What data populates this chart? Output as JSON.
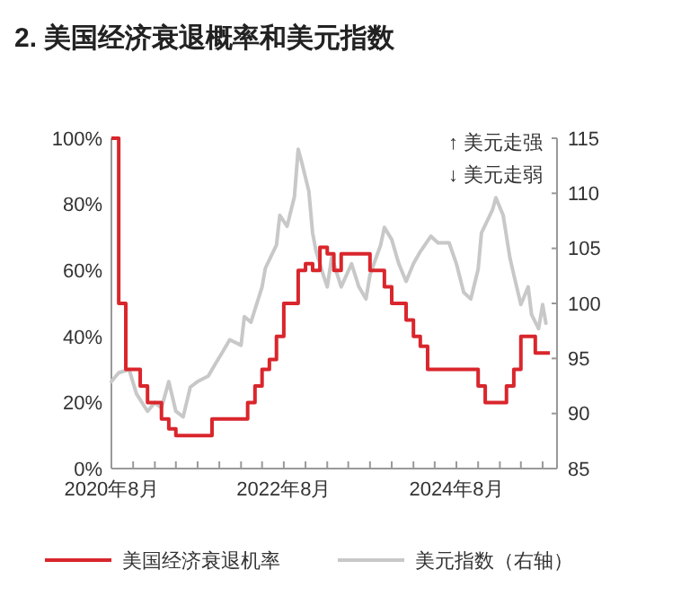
{
  "chart_data": {
    "type": "line",
    "title": "2. 美国经济衰退概率和美元指数",
    "annotations": [
      "↑ 美元走强",
      "↓ 美元走弱"
    ],
    "xlim": [
      "2020-08",
      "2025-10"
    ],
    "xticks": [
      {
        "value": "2020-08",
        "label": "2020年8月"
      },
      {
        "value": "2020-11",
        "label": null
      },
      {
        "value": "2021-02",
        "label": null
      },
      {
        "value": "2021-05",
        "label": null
      },
      {
        "value": "2021-08",
        "label": null
      },
      {
        "value": "2021-11",
        "label": null
      },
      {
        "value": "2022-02",
        "label": null
      },
      {
        "value": "2022-05",
        "label": null
      },
      {
        "value": "2022-08",
        "label": "2022年8月"
      },
      {
        "value": "2022-11",
        "label": null
      },
      {
        "value": "2023-02",
        "label": null
      },
      {
        "value": "2023-05",
        "label": null
      },
      {
        "value": "2023-08",
        "label": null
      },
      {
        "value": "2023-11",
        "label": null
      },
      {
        "value": "2024-02",
        "label": null
      },
      {
        "value": "2024-05",
        "label": null
      },
      {
        "value": "2024-08",
        "label": "2024年8月"
      },
      {
        "value": "2024-11",
        "label": null
      },
      {
        "value": "2025-02",
        "label": null
      },
      {
        "value": "2025-05",
        "label": null
      },
      {
        "value": "2025-08",
        "label": null
      }
    ],
    "ylim": [
      0,
      100
    ],
    "yticks": [
      {
        "value": 0,
        "label": "0%"
      },
      {
        "value": 20,
        "label": "20%"
      },
      {
        "value": 40,
        "label": "40%"
      },
      {
        "value": 60,
        "label": "60%"
      },
      {
        "value": 80,
        "label": "80%"
      },
      {
        "value": 100,
        "label": "100%"
      }
    ],
    "y2lim": [
      85,
      115
    ],
    "y2ticks": [
      85,
      90,
      95,
      100,
      105,
      110,
      115
    ],
    "grid": false,
    "legend": "bottom",
    "series": [
      {
        "name": "美国经济衰退机率",
        "type": "step",
        "color": "#d9262c",
        "x": [
          "2020-08",
          "2020-09",
          "2020-10",
          "2020-11",
          "2020-12",
          "2021-01",
          "2021-02",
          "2021-03",
          "2021-04",
          "2021-05",
          "2021-06",
          "2021-07",
          "2021-08",
          "2021-09",
          "2021-10",
          "2021-11",
          "2021-12",
          "2022-01",
          "2022-02",
          "2022-03",
          "2022-04",
          "2022-05",
          "2022-06",
          "2022-07",
          "2022-08",
          "2022-09",
          "2022-10",
          "2022-11",
          "2022-12",
          "2023-01",
          "2023-02",
          "2023-03",
          "2023-04",
          "2023-05",
          "2023-06",
          "2023-07",
          "2023-08",
          "2023-09",
          "2023-10",
          "2023-11",
          "2023-12",
          "2024-01",
          "2024-02",
          "2024-03",
          "2024-04",
          "2024-05",
          "2024-06",
          "2024-07",
          "2024-08",
          "2024-09",
          "2024-10",
          "2024-11",
          "2024-12",
          "2025-01",
          "2025-02",
          "2025-03",
          "2025-04",
          "2025-05",
          "2025-06",
          "2025-07",
          "2025-08",
          "2025-09"
        ],
        "values": [
          100,
          50,
          30,
          30,
          25,
          20,
          20,
          15,
          12,
          10,
          10,
          10,
          10,
          10,
          15,
          15,
          15,
          15,
          15,
          20,
          25,
          30,
          33,
          40,
          50,
          50,
          60,
          62,
          60,
          67,
          65,
          60,
          65,
          65,
          65,
          65,
          60,
          60,
          55,
          50,
          50,
          45,
          40,
          37,
          30,
          30,
          30,
          30,
          30,
          30,
          30,
          25,
          20,
          20,
          20,
          25,
          30,
          40,
          40,
          35,
          35,
          35
        ]
      },
      {
        "name": "美元指数（右轴）",
        "axis": "y2",
        "color": "#c8c8c8",
        "x": [
          "2020-08-01",
          "2020-09-01",
          "2020-10-15",
          "2020-11-15",
          "2021-01-01",
          "2021-02-01",
          "2021-03-01",
          "2021-04-01",
          "2021-05-01",
          "2021-06-01",
          "2021-07-01",
          "2021-08-01",
          "2021-09-15",
          "2021-10-15",
          "2021-11-15",
          "2021-12-15",
          "2022-02-01",
          "2022-02-15",
          "2022-03-15",
          "2022-05-01",
          "2022-05-15",
          "2022-07-01",
          "2022-07-15",
          "2022-08-15",
          "2022-09-15",
          "2022-10-01",
          "2022-10-15",
          "2022-11-15",
          "2022-12-01",
          "2022-12-15",
          "2023-01-15",
          "2023-02-01",
          "2023-02-20",
          "2023-04-01",
          "2023-05-15",
          "2023-06-15",
          "2023-07-15",
          "2023-08-01",
          "2023-09-15",
          "2023-10-01",
          "2023-11-01",
          "2023-12-01",
          "2024-01-01",
          "2024-02-01",
          "2024-03-01",
          "2024-04-15",
          "2024-05-15",
          "2024-07-01",
          "2024-08-01",
          "2024-09-01",
          "2024-10-01",
          "2024-11-01",
          "2024-11-15",
          "2025-01-01",
          "2025-01-15",
          "2025-02-15",
          "2025-03-15",
          "2025-04-01",
          "2025-05-01",
          "2025-06-01",
          "2025-06-15",
          "2025-07-15",
          "2025-08-01",
          "2025-08-15"
        ],
        "values": [
          92.9,
          93.7,
          94,
          91.8,
          90.2,
          91,
          90.5,
          92.9,
          90.2,
          89.7,
          92.4,
          92.9,
          93.4,
          94.5,
          95.6,
          96.7,
          96.2,
          98.8,
          98.3,
          101.5,
          103.2,
          105.3,
          108,
          107,
          109.7,
          114,
          112.9,
          110.2,
          106.4,
          104.8,
          102.6,
          101.5,
          104.2,
          101.5,
          103.6,
          101.5,
          100.4,
          102.6,
          105.3,
          106.9,
          105.8,
          103.6,
          102,
          103.6,
          104.7,
          106.1,
          105.5,
          105.5,
          103.6,
          101,
          100.4,
          103.1,
          106.4,
          108.5,
          109.6,
          108,
          104.2,
          102.6,
          99.9,
          101.5,
          99,
          97.7,
          99.9,
          98.2
        ]
      }
    ]
  }
}
